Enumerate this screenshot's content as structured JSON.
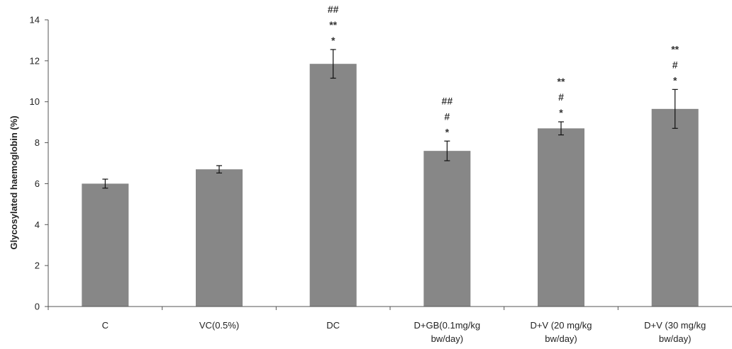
{
  "chart_data": {
    "type": "bar",
    "title": "",
    "xlabel": "",
    "ylabel": "Glycosylated haemoglobin (%)",
    "ylim": [
      0,
      14
    ],
    "yticks": [
      0,
      2,
      4,
      6,
      8,
      10,
      12,
      14
    ],
    "grid": false,
    "legend": "none",
    "bar_color": "#878787",
    "categories": [
      [
        "C"
      ],
      [
        "VC(0.5%)"
      ],
      [
        "DC"
      ],
      [
        "D+GB(0.1mg/kg",
        "bw/day)"
      ],
      [
        "D+V (20 mg/kg",
        "bw/day)"
      ],
      [
        "D+V (30 mg/kg",
        "bw/day)"
      ]
    ],
    "values": [
      6.0,
      6.7,
      11.85,
      7.6,
      8.7,
      9.65
    ],
    "errors": [
      0.22,
      0.18,
      0.7,
      0.48,
      0.32,
      0.95
    ],
    "annotations": [
      [],
      [],
      [
        "##",
        "**",
        "*"
      ],
      [
        "##",
        "#",
        "*"
      ],
      [
        "**",
        "#",
        "*"
      ],
      [
        "**",
        "#",
        "*"
      ]
    ]
  }
}
